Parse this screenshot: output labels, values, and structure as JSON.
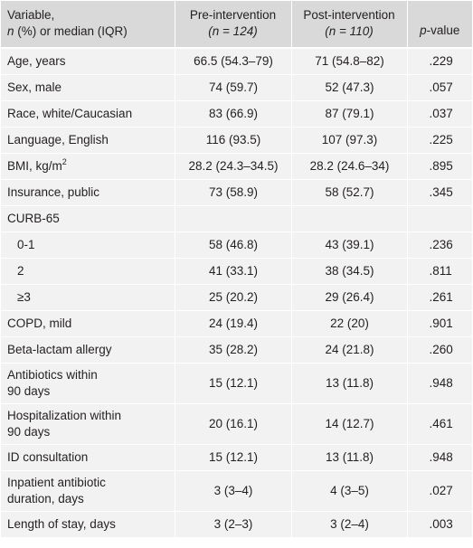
{
  "header": {
    "variable_line1": "Variable,",
    "variable_line2_n": "n",
    "variable_line2_rest": " (%) or median (IQR)",
    "pre_title": "Pre-intervention",
    "pre_n_open": "(",
    "pre_n_var": "n",
    "pre_n_rest": " = 124)",
    "post_title": "Post-intervention",
    "post_n_open": "(",
    "post_n_var": "n",
    "post_n_rest": " = 110)",
    "p_italic": "p",
    "p_rest": "-value"
  },
  "rows": [
    {
      "variable": "Age, years",
      "pre": "66.5 (54.3–79)",
      "post": "71 (54.8–82)",
      "p": ".229"
    },
    {
      "variable": "Sex, male",
      "pre": "74 (59.7)",
      "post": "52 (47.3)",
      "p": ".057"
    },
    {
      "variable": "Race, white/Caucasian",
      "pre": "83 (66.9)",
      "post": "87 (79.1)",
      "p": ".037"
    },
    {
      "variable": "Language, English",
      "pre": "116 (93.5)",
      "post": "107 (97.3)",
      "p": ".225"
    },
    {
      "variable": "BMI, kg/m",
      "variable_sup": "2",
      "pre": "28.2 (24.3–34.5)",
      "post": "28.2 (24.6–34)",
      "p": ".895"
    },
    {
      "variable": "Insurance, public",
      "pre": "73 (58.9)",
      "post": "58 (52.7)",
      "p": ".345"
    },
    {
      "variable": "CURB-65",
      "pre": "",
      "post": "",
      "p": ""
    },
    {
      "variable": "0-1",
      "pre": "58 (46.8)",
      "post": "43 (39.1)",
      "p": ".236"
    },
    {
      "variable": "2",
      "pre": "41 (33.1)",
      "post": "38 (34.5)",
      "p": ".811"
    },
    {
      "variable": "≥3",
      "pre": "25 (20.2)",
      "post": "29 (26.4)",
      "p": ".261"
    },
    {
      "variable": "COPD, mild",
      "pre": "24 (19.4)",
      "post": "22 (20)",
      "p": ".901"
    },
    {
      "variable": "Beta-lactam allergy",
      "pre": "35 (28.2)",
      "post": "24 (21.8)",
      "p": ".260"
    },
    {
      "variable_line1": "Antibiotics within",
      "variable_line2": "90 days",
      "pre": "15 (12.1)",
      "post": "13 (11.8)",
      "p": ".948"
    },
    {
      "variable_line1": "Hospitalization within",
      "variable_line2": "90 days",
      "pre": "20 (16.1)",
      "post": "14 (12.7)",
      "p": ".461"
    },
    {
      "variable": "ID consultation",
      "pre": "15 (12.1)",
      "post": "13 (11.8)",
      "p": ".948"
    },
    {
      "variable_line1": "Inpatient antibiotic",
      "variable_line2": "duration, days",
      "pre": "3 (3–4)",
      "post": "4 (3–5)",
      "p": ".027"
    },
    {
      "variable": "Length of stay, days",
      "pre": "3 (2–3)",
      "post": "3 (2–4)",
      "p": ".003"
    }
  ],
  "colors": {
    "header_bg": "#d9d9d9",
    "row_bg": "#f2f2f2",
    "text": "#231f20"
  }
}
